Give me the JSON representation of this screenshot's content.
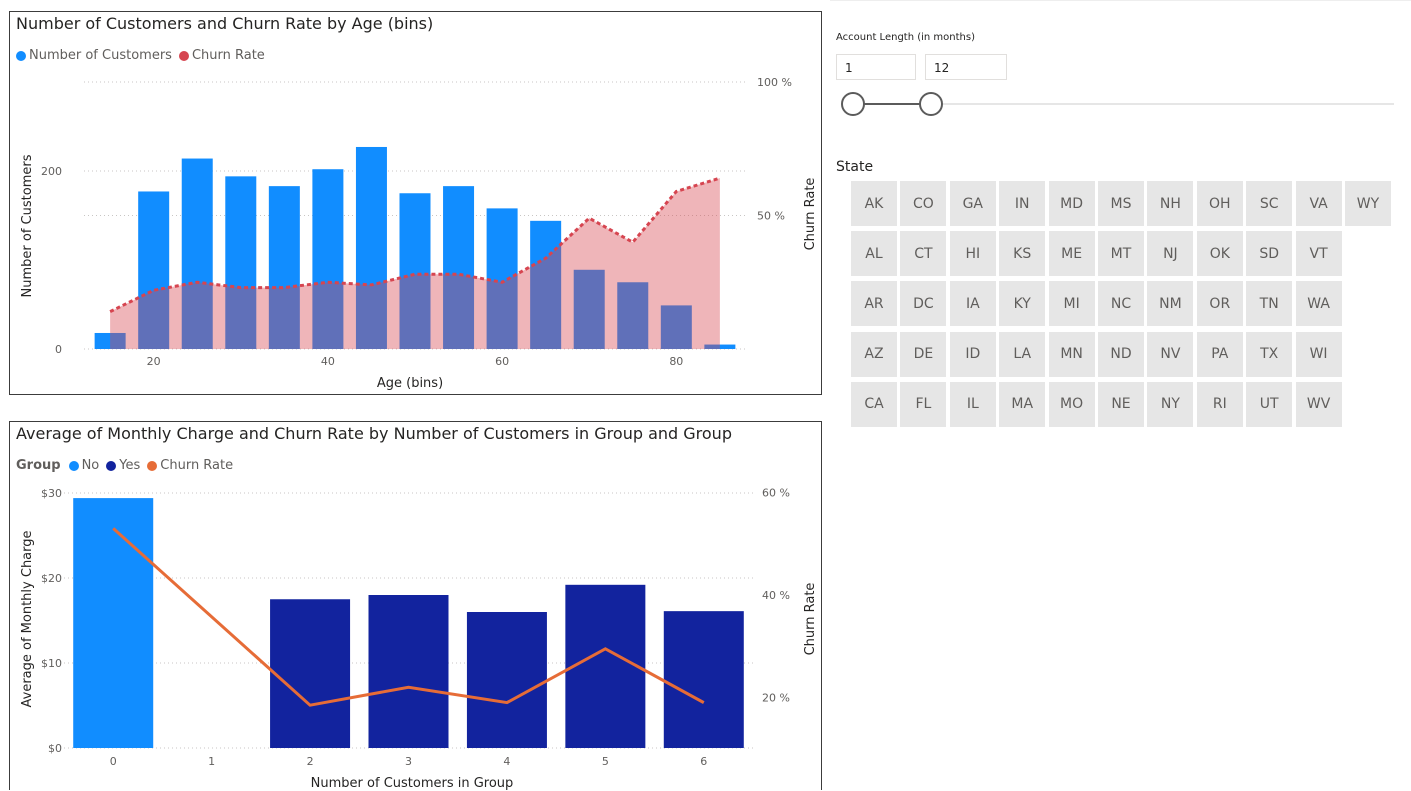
{
  "chart_data": [
    {
      "type": "bar+line",
      "title": "Number of Customers and Churn Rate by Age (bins)",
      "xlabel": "Age (bins)",
      "ylabel": "Number of Customers",
      "y2label": "Churn Rate",
      "x_ticks": [
        "20",
        "40",
        "60",
        "80"
      ],
      "y_ticks": [
        "0",
        "200"
      ],
      "y2_ticks": [
        "50 %",
        "100 %"
      ],
      "xlim": [
        12,
        88
      ],
      "ylim": [
        0,
        240
      ],
      "y2lim": [
        0,
        100
      ],
      "series": [
        {
          "name": "Number of Customers",
          "type": "bar",
          "color": "#118DFF",
          "x": [
            15,
            20,
            25,
            30,
            35,
            40,
            45,
            50,
            55,
            60,
            65,
            70,
            75,
            80,
            85
          ],
          "values": [
            18,
            177,
            214,
            194,
            183,
            202,
            227,
            175,
            183,
            158,
            144,
            89,
            75,
            49,
            5
          ]
        },
        {
          "name": "Churn Rate",
          "type": "area-line",
          "color": "#D64550",
          "x": [
            15,
            20,
            25,
            30,
            35,
            40,
            45,
            50,
            55,
            60,
            65,
            70,
            75,
            80,
            85
          ],
          "values": [
            14,
            22,
            25,
            23,
            23,
            25,
            24,
            28,
            28,
            25,
            34,
            49,
            40,
            59,
            64
          ]
        }
      ],
      "legend": "top-left"
    },
    {
      "type": "bar+line",
      "title": "Average of Monthly Charge and Churn Rate by Number of Customers in Group and Group",
      "xlabel": "Number of Customers in Group",
      "ylabel": "Average of Monthly Charge",
      "y2label": "Churn Rate",
      "legend_title": "Group",
      "categories": [
        "0",
        "1",
        "2",
        "3",
        "4",
        "5",
        "6"
      ],
      "y_ticks": [
        "$0",
        "$10",
        "$20",
        "$30"
      ],
      "y2_ticks": [
        "20 %",
        "40 %",
        "60 %"
      ],
      "ylim": [
        0,
        30
      ],
      "y2lim": [
        0,
        60
      ],
      "series": [
        {
          "name": "No",
          "type": "bar",
          "color": "#118DFF",
          "values": [
            29.4,
            null,
            null,
            null,
            null,
            null,
            null
          ]
        },
        {
          "name": "Yes",
          "type": "bar",
          "color": "#12239E",
          "values": [
            null,
            null,
            17.5,
            18.0,
            16.0,
            19.2,
            16.1
          ]
        },
        {
          "name": "Churn Rate",
          "type": "line",
          "color": "#E66C37",
          "values": [
            53,
            null,
            18.5,
            22,
            19,
            29.5,
            19
          ]
        }
      ],
      "legend": "top-left"
    }
  ],
  "slicer": {
    "title": "Account Length (in months)",
    "min_value": "1",
    "max_value": "12"
  },
  "state": {
    "title": "State",
    "rows": [
      [
        "AK",
        "CO",
        "GA",
        "IN",
        "MD",
        "MS",
        "NH",
        "OH",
        "SC",
        "VA",
        "WY"
      ],
      [
        "AL",
        "CT",
        "HI",
        "KS",
        "ME",
        "MT",
        "NJ",
        "OK",
        "SD",
        "VT"
      ],
      [
        "AR",
        "DC",
        "IA",
        "KY",
        "MI",
        "NC",
        "NM",
        "OR",
        "TN",
        "WA"
      ],
      [
        "AZ",
        "DE",
        "ID",
        "LA",
        "MN",
        "ND",
        "NV",
        "PA",
        "TX",
        "WI"
      ],
      [
        "CA",
        "FL",
        "IL",
        "MA",
        "MO",
        "NE",
        "NY",
        "RI",
        "UT",
        "WV"
      ]
    ]
  }
}
